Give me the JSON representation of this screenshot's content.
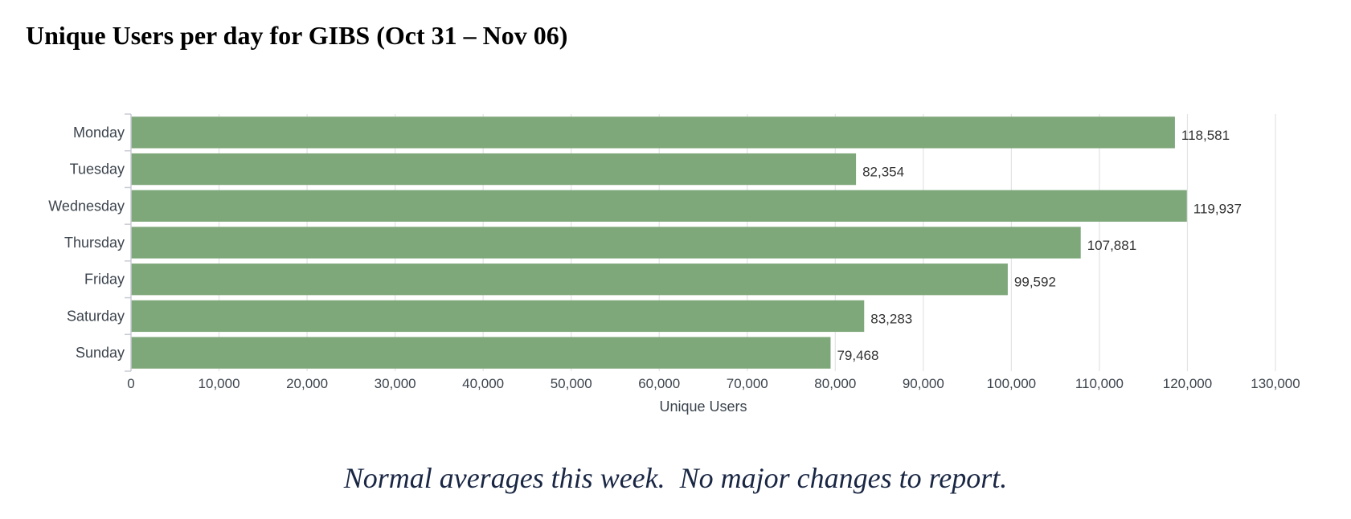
{
  "page": {
    "title": "Unique Users per day for GIBS (Oct 31 – Nov 06)",
    "caption": "Normal averages this week.  No major changes to report."
  },
  "colors": {
    "bar": "#7ea87a",
    "grid": "#e3e3e6",
    "axis": "#c8cbd4",
    "label": "#3c444d"
  },
  "chart_data": {
    "type": "bar",
    "orientation": "horizontal",
    "categories": [
      "Monday",
      "Tuesday",
      "Wednesday",
      "Thursday",
      "Friday",
      "Saturday",
      "Sunday"
    ],
    "values": [
      118581,
      82354,
      119937,
      107881,
      99592,
      83283,
      79468
    ],
    "data_labels": [
      "118,581",
      "82,354",
      "119,937",
      "107,881",
      "99,592",
      "83,283",
      "79,468"
    ],
    "xlabel": "Unique Users",
    "ylabel": "",
    "xlim": [
      0,
      130000
    ],
    "x_ticks": [
      0,
      10000,
      20000,
      30000,
      40000,
      50000,
      60000,
      70000,
      80000,
      90000,
      100000,
      110000,
      120000,
      130000
    ],
    "x_tick_labels": [
      "0",
      "10,000",
      "20,000",
      "30,000",
      "40,000",
      "50,000",
      "60,000",
      "70,000",
      "80,000",
      "90,000",
      "100,000",
      "110,000",
      "120,000",
      "130,000"
    ],
    "grid": true,
    "legend": "none"
  }
}
